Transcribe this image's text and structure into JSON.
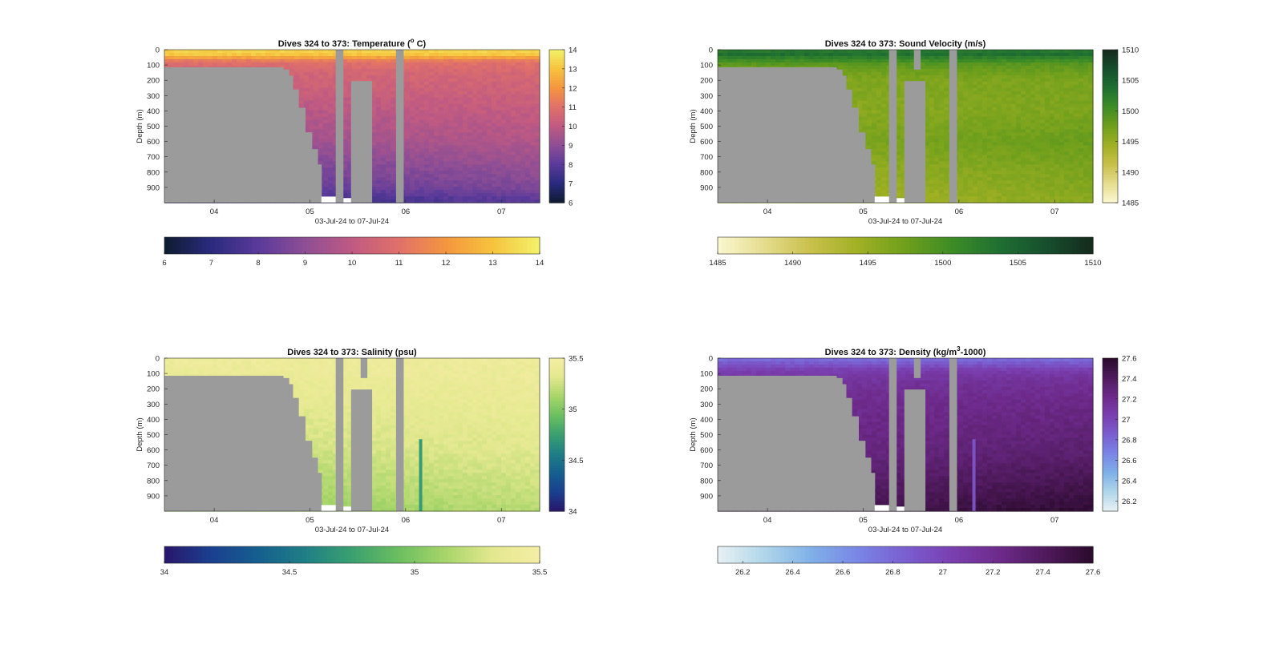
{
  "figure": {
    "background": "#ffffff",
    "missing_color": "#9b9b9b",
    "xlabel": "03-Jul-24 to 07-Jul-24",
    "ylabel": "Depth (m)"
  },
  "chart_data": [
    {
      "id": "temperature",
      "type": "heatmap",
      "title_pre": "Dives 324 to 373: Temperature (",
      "title_sup": "o",
      "title_post": " C)",
      "xlabel": "03-Jul-24 to 07-Jul-24",
      "ylabel": "Depth (m)",
      "x_ticks": [
        "04",
        "05",
        "06",
        "07"
      ],
      "x_tick_days": [
        4,
        5,
        6,
        7
      ],
      "xlim_days": [
        3.48,
        7.4
      ],
      "y_ticks": [
        0,
        100,
        200,
        300,
        400,
        500,
        600,
        700,
        800,
        900
      ],
      "ylim": [
        0,
        1000
      ],
      "y_reversed": true,
      "colorbar_ticks": [
        "6",
        "7",
        "8",
        "9",
        "10",
        "11",
        "12",
        "13",
        "14"
      ],
      "clim": [
        6,
        14
      ],
      "colormap": [
        "#0d1b2e",
        "#2a2a7e",
        "#5a3a9a",
        "#8e4e95",
        "#c05a82",
        "#e0706a",
        "#f4963f",
        "#f6c33e",
        "#f2f26a"
      ],
      "profile": {
        "depths": [
          0,
          40,
          60,
          80,
          150,
          300,
          600,
          900,
          1000
        ],
        "values": [
          13.4,
          13.0,
          11.8,
          11.0,
          10.6,
          10.2,
          9.5,
          8.4,
          7.6
        ]
      }
    },
    {
      "id": "sound-velocity",
      "type": "heatmap",
      "title_pre": "Dives 324 to 373: Sound Velocity (m/s)",
      "title_sup": "",
      "title_post": "",
      "xlabel": "03-Jul-24 to 07-Jul-24",
      "ylabel": "Depth (m)",
      "x_ticks": [
        "04",
        "05",
        "06",
        "07"
      ],
      "x_tick_days": [
        4,
        5,
        6,
        7
      ],
      "xlim_days": [
        3.48,
        7.4
      ],
      "y_ticks": [
        0,
        100,
        200,
        300,
        400,
        500,
        600,
        700,
        800,
        900
      ],
      "ylim": [
        0,
        1000
      ],
      "y_reversed": true,
      "colorbar_ticks": [
        "1485",
        "1490",
        "1495",
        "1500",
        "1505",
        "1510"
      ],
      "clim": [
        1485,
        1510
      ],
      "colormap": [
        "#fbf7d0",
        "#e5dc8e",
        "#c8c04a",
        "#a0b024",
        "#6f9f1c",
        "#3d8c26",
        "#1f6f32",
        "#174f2e",
        "#14291c"
      ],
      "profile": {
        "depths": [
          0,
          30,
          60,
          100,
          200,
          400,
          600,
          800,
          1000
        ],
        "values": [
          1502.5,
          1503.8,
          1501.5,
          1498.5,
          1496.5,
          1496.2,
          1497.3,
          1495.8,
          1494.8
        ]
      }
    },
    {
      "id": "salinity",
      "type": "heatmap",
      "title_pre": "Dives 324 to 373: Salinity (psu)",
      "title_sup": "",
      "title_post": "",
      "xlabel": "03-Jul-24 to 07-Jul-24",
      "ylabel": "Depth (m)",
      "x_ticks": [
        "04",
        "05",
        "06",
        "07"
      ],
      "x_tick_days": [
        4,
        5,
        6,
        7
      ],
      "xlim_days": [
        3.48,
        7.4
      ],
      "y_ticks": [
        0,
        100,
        200,
        300,
        400,
        500,
        600,
        700,
        800,
        900
      ],
      "ylim": [
        0,
        1000
      ],
      "y_reversed": true,
      "colorbar_ticks": [
        "34",
        "34.5",
        "35",
        "35.5"
      ],
      "clim": [
        34,
        35.5
      ],
      "colormap": [
        "#29166b",
        "#1b3f8f",
        "#155f8f",
        "#1f7f85",
        "#3aa070",
        "#6cbf60",
        "#a8d56a",
        "#e3e88e",
        "#f5eea5"
      ],
      "profile": {
        "depths": [
          0,
          100,
          300,
          600,
          800,
          1000
        ],
        "values": [
          35.42,
          35.4,
          35.35,
          35.28,
          35.2,
          35.12
        ]
      }
    },
    {
      "id": "density",
      "type": "heatmap",
      "title_pre": "Dives 324 to 373: Density (kg/m",
      "title_sup": "3",
      "title_post": "-1000)",
      "xlabel": "03-Jul-24 to 07-Jul-24",
      "ylabel": "Depth (m)",
      "x_ticks": [
        "04",
        "05",
        "06",
        "07"
      ],
      "x_tick_days": [
        4,
        5,
        6,
        7
      ],
      "xlim_days": [
        3.48,
        7.4
      ],
      "y_ticks": [
        0,
        100,
        200,
        300,
        400,
        500,
        600,
        700,
        800,
        900
      ],
      "ylim": [
        0,
        1000
      ],
      "y_reversed": true,
      "colorbar_ticks": [
        "26.2",
        "26.4",
        "26.6",
        "26.8",
        "27",
        "27.2",
        "27.4",
        "27.6"
      ],
      "clim": [
        26.1,
        27.6
      ],
      "colormap": [
        "#e8f1f4",
        "#b0d6ea",
        "#7fb0e8",
        "#7a85e6",
        "#7a5ed0",
        "#7a3fb0",
        "#6d2a8a",
        "#4f1a5c",
        "#2a0a2c"
      ],
      "profile": {
        "depths": [
          0,
          40,
          80,
          150,
          300,
          600,
          900,
          1000
        ],
        "values": [
          26.75,
          26.9,
          27.05,
          27.15,
          27.22,
          27.3,
          27.45,
          27.52
        ]
      }
    }
  ]
}
